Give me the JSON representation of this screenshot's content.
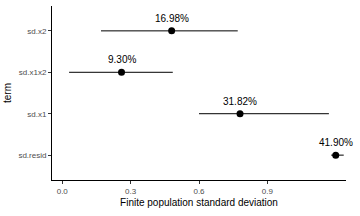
{
  "chart_data": {
    "type": "dot_whisker",
    "orientation": "horizontal",
    "x_label": "Finite population standard deviation",
    "y_label": "term",
    "categories": [
      "sd.resid",
      "sd.x1",
      "sd.x1x2",
      "sd.x2"
    ],
    "values": [
      1.2,
      0.78,
      0.26,
      0.48
    ],
    "lower": [
      1.18,
      0.6,
      0.03,
      0.17
    ],
    "upper": [
      1.235,
      1.17,
      0.485,
      0.77
    ],
    "annotations": [
      "41.90%",
      "31.82%",
      "9.30%",
      "16.98%"
    ],
    "xlim": [
      -0.045,
      1.245
    ],
    "xticks": [
      {
        "value": 0,
        "label": "0.0"
      },
      0.3,
      0.6,
      0.9
    ],
    "color": "#000000",
    "grid": false
  }
}
